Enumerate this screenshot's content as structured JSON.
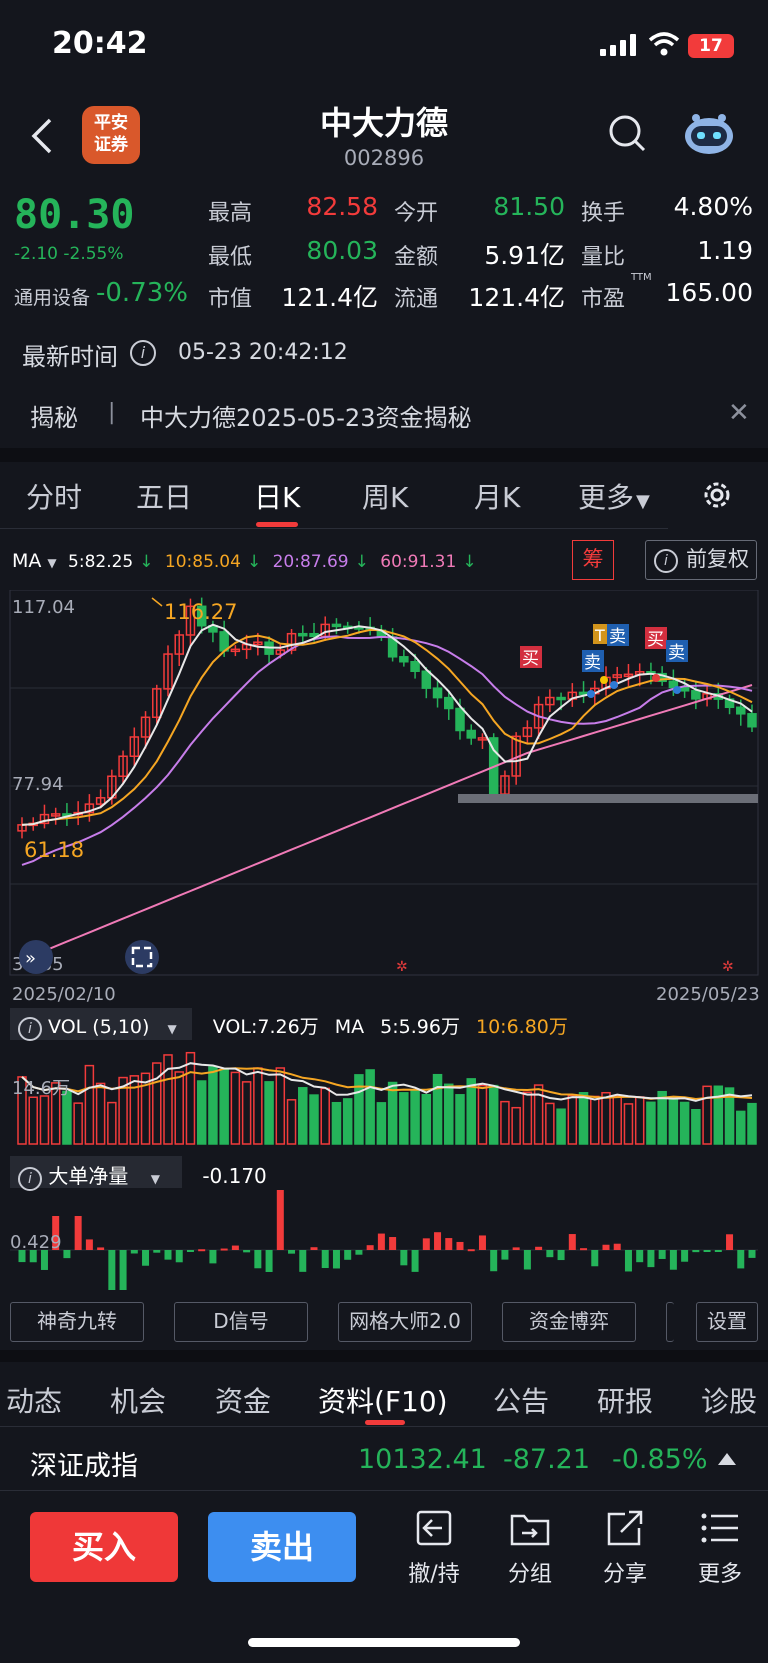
{
  "status_bar": {
    "time": "20:42",
    "battery": "17"
  },
  "header": {
    "broker_logo": "平安\n证券",
    "stock_name": "中大力德",
    "stock_code": "002896"
  },
  "quote": {
    "price": "80.30",
    "change": "-2.10 -2.55%",
    "sector_label": "通用设备",
    "sector_change": "-0.73%",
    "fields": [
      {
        "label": "最高",
        "value": "82.58",
        "color": "#f23b3b"
      },
      {
        "label": "今开",
        "value": "81.50",
        "color": "#25b45a"
      },
      {
        "label": "换手",
        "value": "4.80%",
        "color": "#ffffff"
      },
      {
        "label": "最低",
        "value": "80.03",
        "color": "#25b45a"
      },
      {
        "label": "金额",
        "value": "5.91亿",
        "color": "#ffffff"
      },
      {
        "label": "量比",
        "value": "1.19",
        "color": "#ffffff"
      },
      {
        "label": "市值",
        "value": "121.4亿",
        "color": "#ffffff"
      },
      {
        "label": "流通",
        "value": "121.4亿",
        "color": "#ffffff"
      },
      {
        "label": "市盈",
        "value": "165.00",
        "color": "#ffffff",
        "sup": "TTM"
      }
    ],
    "update_label": "最新时间",
    "update_value": "05-23 20:42:12"
  },
  "reveal": {
    "tag": "揭秘",
    "separator": "|",
    "text": "中大力德2025-05-23资金揭秘"
  },
  "period_tabs": [
    "分时",
    "五日",
    "日K",
    "周K",
    "月K",
    "更多"
  ],
  "active_period": "日K",
  "ma_row": {
    "label": "MA",
    "ma5": "5:82.25",
    "ma10": "10:85.04",
    "ma20": "20:87.69",
    "ma60": "60:91.31",
    "chip_label": "筹",
    "adjust_label": "前复权"
  },
  "kline": {
    "y_high_label": "117.04",
    "y_mid_label": "77.94",
    "y_low_label": "38.85",
    "max_marker": "116.27",
    "min_marker": "61.18",
    "date_start": "2025/02/10",
    "date_end": "2025/05/23",
    "signals": [
      "买",
      "卖",
      "T",
      "卖",
      "买",
      "卖"
    ]
  },
  "volume": {
    "label": "VOL (5,10)",
    "vol_value": "VOL:7.26万",
    "ma_label": "MA",
    "ma5": "5:5.96万",
    "ma10": "10:6.80万",
    "axis_label": "14.6万"
  },
  "big_order": {
    "label": "大单净量",
    "value": "-0.170",
    "axis_label": "0.429"
  },
  "tools": [
    "神奇九转",
    "D信号",
    "网格大师2.0",
    "资金博弈",
    "设置"
  ],
  "bottom_tabs": [
    "动态",
    "机会",
    "资金",
    "资料(F10)",
    "公告",
    "研报",
    "诊股"
  ],
  "active_bottom_tab": "资料(F10)",
  "index": {
    "name": "深证成指",
    "value": "10132.41",
    "change": "-87.21",
    "pct": "-0.85%"
  },
  "actions": {
    "buy": "买入",
    "sell": "卖出",
    "withdraw": "撤/持",
    "group": "分组",
    "share": "分享",
    "more": "更多"
  },
  "colors": {
    "up": "#f23b3b",
    "down": "#25b45a",
    "ma5": "#e8e8e8",
    "ma10": "#f5a623",
    "ma20": "#c77dea",
    "ma60": "#f07ab7",
    "buy": "#ef3838",
    "sell": "#3d8ef0"
  }
}
